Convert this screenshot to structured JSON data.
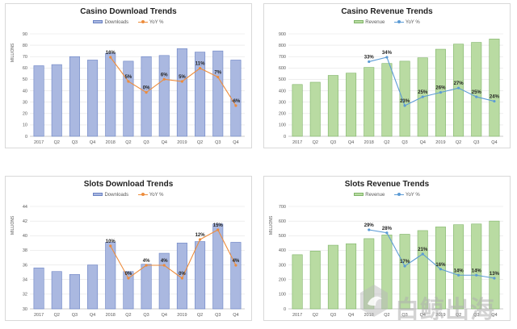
{
  "colors": {
    "downloads_bar_fill": "#aab8e0",
    "downloads_bar_edge": "#6a82c4",
    "revenue_bar_fill": "#b9dba2",
    "revenue_bar_edge": "#7fb468",
    "orange_line": "#ed8c3c",
    "blue_line": "#5b9bd5",
    "grid": "#e3e3e3",
    "axis_text": "#595959"
  },
  "watermark": {
    "text": "白鲸出海"
  },
  "chart_data": [
    {
      "type": "bar",
      "title": "Casino Download Trends",
      "ylabel": "MILLIONS",
      "ylim": [
        0,
        90
      ],
      "yticks": [
        0,
        10,
        20,
        30,
        40,
        50,
        60,
        70,
        80,
        90
      ],
      "categories": [
        "2017",
        "Q2",
        "Q3",
        "Q4",
        "2018",
        "Q2",
        "Q3",
        "Q4",
        "2019",
        "Q2",
        "Q3",
        "Q4"
      ],
      "legend": {
        "bar": "Downloads",
        "line": "YoY %"
      },
      "series": [
        {
          "name": "Downloads",
          "kind": "bar",
          "values": [
            62,
            63,
            70,
            67,
            73,
            66,
            70,
            71,
            77,
            74,
            75,
            67
          ]
        },
        {
          "name": "YoY %",
          "kind": "line",
          "line_color": "orange",
          "values": [
            null,
            null,
            null,
            null,
            16,
            5,
            0,
            6,
            5,
            11,
            7,
            -6
          ],
          "labels": [
            "",
            "",
            "",
            "",
            "16%",
            "5%",
            "0%",
            "6%",
            "5%",
            "11%",
            "7%",
            "-6%"
          ]
        }
      ]
    },
    {
      "type": "bar",
      "title": "Casino Revenue Trends",
      "ylabel": "",
      "ylim": [
        0,
        900
      ],
      "yticks": [
        0,
        100,
        200,
        300,
        400,
        500,
        600,
        700,
        800,
        900
      ],
      "categories": [
        "2017",
        "Q2",
        "Q3",
        "Q4",
        "2018",
        "Q2",
        "Q3",
        "Q4",
        "2019",
        "Q2",
        "Q3",
        "Q4"
      ],
      "legend": {
        "bar": "Revenue",
        "line": "YoY %"
      },
      "series": [
        {
          "name": "Revenue",
          "kind": "bar",
          "values": [
            455,
            475,
            535,
            555,
            605,
            640,
            660,
            690,
            765,
            810,
            825,
            855
          ]
        },
        {
          "name": "YoY %",
          "kind": "line",
          "line_color": "blue",
          "values": [
            null,
            null,
            null,
            null,
            33,
            34,
            23,
            25,
            26,
            27,
            25,
            24
          ],
          "labels": [
            "",
            "",
            "",
            "",
            "33%",
            "34%",
            "23%",
            "25%",
            "26%",
            "27%",
            "25%",
            "24%"
          ]
        }
      ]
    },
    {
      "type": "bar",
      "title": "Slots Download Trends",
      "ylabel": "MILLIONS",
      "ylim": [
        30,
        44
      ],
      "yticks": [
        30,
        32,
        34,
        36,
        38,
        40,
        42,
        44
      ],
      "categories": [
        "2017",
        "Q2",
        "Q3",
        "Q4",
        "2018",
        "Q2",
        "Q3",
        "Q4",
        "2019",
        "Q2",
        "Q3",
        "Q4"
      ],
      "legend": {
        "bar": "Downloads",
        "line": "YoY %"
      },
      "series": [
        {
          "name": "Downloads",
          "kind": "bar",
          "values": [
            35.6,
            35.1,
            34.7,
            36.0,
            39.1,
            35.1,
            36.1,
            37.6,
            39.0,
            39.2,
            41.6,
            39.1
          ]
        },
        {
          "name": "YoY %",
          "kind": "line",
          "line_color": "orange",
          "values": [
            null,
            null,
            null,
            null,
            10,
            0,
            4,
            4,
            0,
            12,
            15,
            4
          ],
          "labels": [
            "",
            "",
            "",
            "",
            "10%",
            "0%",
            "4%",
            "4%",
            "0%",
            "12%",
            "15%",
            "4%"
          ]
        }
      ]
    },
    {
      "type": "bar",
      "title": "Slots Revenue Trends",
      "ylabel": "MILLIONS",
      "ylim": [
        0,
        700
      ],
      "yticks": [
        0,
        100,
        200,
        300,
        400,
        500,
        600,
        700
      ],
      "categories": [
        "2017",
        "Q2",
        "Q3",
        "Q4",
        "2018",
        "Q2",
        "Q3",
        "Q4",
        "2019",
        "Q2",
        "Q3",
        "Q4"
      ],
      "legend": {
        "bar": "Revenue",
        "line": "YoY %"
      },
      "series": [
        {
          "name": "Revenue",
          "kind": "bar",
          "values": [
            370,
            395,
            435,
            445,
            480,
            505,
            510,
            535,
            560,
            575,
            580,
            600
          ]
        },
        {
          "name": "YoY %",
          "kind": "line",
          "line_color": "blue",
          "values": [
            null,
            null,
            null,
            null,
            29,
            28,
            17,
            21,
            16,
            14,
            14,
            13
          ],
          "labels": [
            "",
            "",
            "",
            "",
            "29%",
            "28%",
            "17%",
            "21%",
            "16%",
            "14%",
            "14%",
            "13%"
          ]
        }
      ]
    }
  ]
}
